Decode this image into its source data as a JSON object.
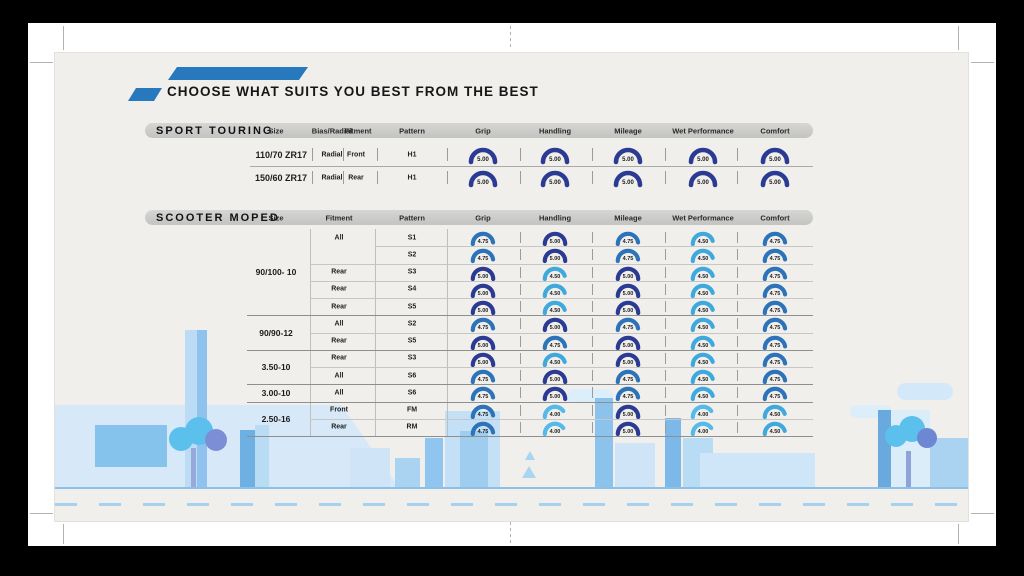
{
  "page": {
    "title": "CHOOSE WHAT SUITS YOU BEST FROM THE BEST"
  },
  "colors": {
    "accent_blue": "#2878be",
    "gauge": {
      "5.00": "#2b3b94",
      "4.75": "#2d73ba",
      "4.50": "#3fa9de",
      "4.00": "#54bae9"
    },
    "bar_gray": "#c9c9c7"
  },
  "sport_touring": {
    "section_label": "SPORT TOURING",
    "columns": [
      "Size",
      "Bias/Radial",
      "Fitment",
      "Pattern",
      "Grip",
      "Handling",
      "Mileage",
      "Wet Performance",
      "Comfort"
    ],
    "rows": [
      {
        "size": "110/70 ZR17",
        "bias_radial": "Radial",
        "fitment": "Front",
        "pattern": "H1",
        "grip": "5.00",
        "handling": "5.00",
        "mileage": "5.00",
        "wet": "5.00",
        "comfort": "5.00"
      },
      {
        "size": "150/60 ZR17",
        "bias_radial": "Radial",
        "fitment": "Rear",
        "pattern": "H1",
        "grip": "5.00",
        "handling": "5.00",
        "mileage": "5.00",
        "wet": "5.00",
        "comfort": "5.00"
      }
    ]
  },
  "scooter_moped": {
    "section_label": "SCOOTER MOPED",
    "columns": [
      "Size",
      "Fitment",
      "Pattern",
      "Grip",
      "Handling",
      "Mileage",
      "Wet Performance",
      "Comfort"
    ],
    "groups": [
      {
        "size": "90/100- 10",
        "rows": [
          {
            "fitment": "All",
            "pattern": "S1",
            "grip": "4.75",
            "handling": "5.00",
            "mileage": "4.75",
            "wet": "4.50",
            "comfort": "4.75"
          },
          {
            "fitment": "",
            "pattern": "S2",
            "grip": "4.75",
            "handling": "5.00",
            "mileage": "4.75",
            "wet": "4.50",
            "comfort": "4.75"
          },
          {
            "fitment": "Rear",
            "pattern": "S3",
            "grip": "5.00",
            "handling": "4.50",
            "mileage": "5.00",
            "wet": "4.50",
            "comfort": "4.75"
          },
          {
            "fitment": "Rear",
            "pattern": "S4",
            "grip": "5.00",
            "handling": "4.50",
            "mileage": "5.00",
            "wet": "4.50",
            "comfort": "4.75"
          },
          {
            "fitment": "Rear",
            "pattern": "S5",
            "grip": "5.00",
            "handling": "4.50",
            "mileage": "5.00",
            "wet": "4.50",
            "comfort": "4.75"
          }
        ]
      },
      {
        "size": "90/90-12",
        "rows": [
          {
            "fitment": "All",
            "pattern": "S2",
            "grip": "4.75",
            "handling": "5.00",
            "mileage": "4.75",
            "wet": "4.50",
            "comfort": "4.75"
          },
          {
            "fitment": "Rear",
            "pattern": "S5",
            "grip": "5.00",
            "handling": "4.75",
            "mileage": "5.00",
            "wet": "4.50",
            "comfort": "4.75"
          }
        ]
      },
      {
        "size": "3.50-10",
        "rows": [
          {
            "fitment": "Rear",
            "pattern": "S3",
            "grip": "5.00",
            "handling": "4.50",
            "mileage": "5.00",
            "wet": "4.50",
            "comfort": "4.75"
          },
          {
            "fitment": "All",
            "pattern": "S6",
            "grip": "4.75",
            "handling": "5.00",
            "mileage": "4.75",
            "wet": "4.50",
            "comfort": "4.75"
          }
        ]
      },
      {
        "size": "3.00-10",
        "rows": [
          {
            "fitment": "All",
            "pattern": "S6",
            "grip": "4.75",
            "handling": "5.00",
            "mileage": "4.75",
            "wet": "4.50",
            "comfort": "4.75"
          }
        ]
      },
      {
        "size": "2.50-16",
        "rows": [
          {
            "fitment": "Front",
            "pattern": "FM",
            "grip": "4.75",
            "handling": "4.00",
            "mileage": "5.00",
            "wet": "4.00",
            "comfort": "4.50"
          },
          {
            "fitment": "Rear",
            "pattern": "RM",
            "grip": "4.75",
            "handling": "4.00",
            "mileage": "5.00",
            "wet": "4.00",
            "comfort": "4.50"
          }
        ]
      }
    ]
  }
}
